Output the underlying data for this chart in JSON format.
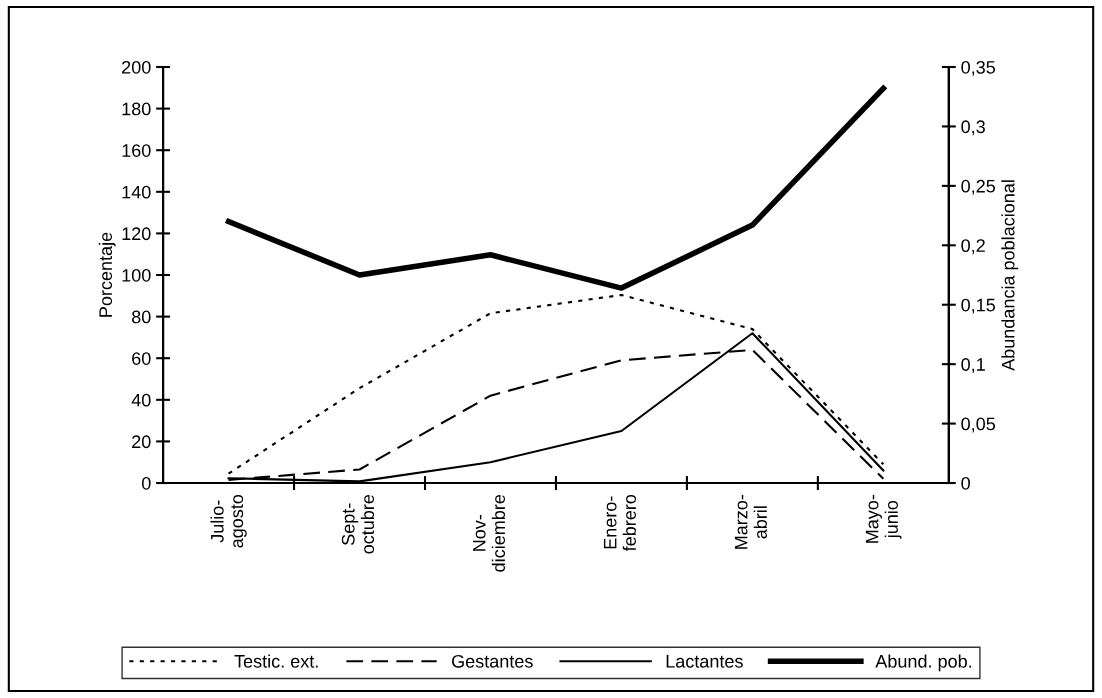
{
  "chart_data": {
    "type": "line",
    "categories": [
      "Julio-\nagosto",
      "Sept-\noctubre",
      "Nov-\ndiciembre",
      "Enero-\nfebrero",
      "Marzo-\nabril",
      "Mayo-\njunio"
    ],
    "ylabel": "Porcentaje",
    "y2label": "Abundancia poblacional",
    "ylim": [
      0,
      200
    ],
    "yticks": [
      0,
      20,
      40,
      60,
      80,
      100,
      120,
      140,
      160,
      180,
      200
    ],
    "y2lim": [
      0,
      0.35
    ],
    "y2ticks": [
      {
        "value": 0,
        "label": "0"
      },
      {
        "value": 0.05,
        "label": "0,05"
      },
      {
        "value": 0.1,
        "label": "0,1"
      },
      {
        "value": 0.15,
        "label": "0,15"
      },
      {
        "value": 0.2,
        "label": "0,2"
      },
      {
        "value": 0.25,
        "label": "0,25"
      },
      {
        "value": 0.3,
        "label": "0,3"
      },
      {
        "value": 0.35,
        "label": "0,35"
      }
    ],
    "grid": false,
    "legend": "bottom",
    "marker": "none",
    "series": [
      {
        "name": "Testic. ext.",
        "color": "#000000",
        "line_style": "dotted",
        "values": [
          4.5,
          45.6,
          81.6,
          90.4,
          74,
          9
        ]
      },
      {
        "name": "Gestantes",
        "color": "#000000",
        "line_style": "dashed",
        "values": [
          1.5,
          6.5,
          42,
          59,
          64,
          2
        ]
      },
      {
        "name": "Lactantes",
        "color": "#000000",
        "line_style": "solid",
        "values": [
          2.3,
          0.8,
          10,
          25,
          72,
          6
        ]
      },
      {
        "name": "Abund. pob.",
        "color": "#000000",
        "line_style": "solid",
        "axis": "y2",
        "values": [
          0.22,
          0.175,
          0.192,
          0.164,
          0.217,
          0.332
        ]
      }
    ]
  }
}
